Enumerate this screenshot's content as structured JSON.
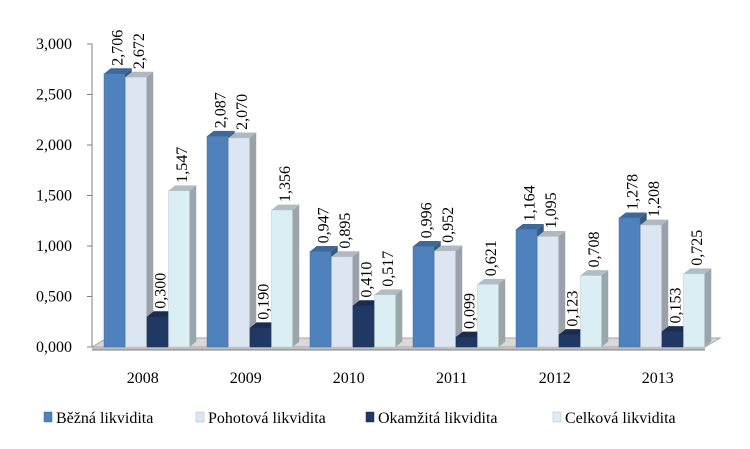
{
  "chart_data": {
    "type": "bar",
    "categories": [
      "2008",
      "2009",
      "2010",
      "2011",
      "2012",
      "2013"
    ],
    "series": [
      {
        "name": "Běžná likvidita",
        "color": "#4f81bd",
        "values": [
          2.706,
          2.087,
          0.947,
          0.996,
          1.164,
          1.278
        ],
        "labels": [
          "2,706",
          "2,087",
          "0,947",
          "0,996",
          "1,164",
          "1,278"
        ]
      },
      {
        "name": "Pohotová likvidita",
        "color": "#dce6f2",
        "values": [
          2.672,
          2.07,
          0.895,
          0.952,
          1.095,
          1.208
        ],
        "labels": [
          "2,672",
          "2,070",
          "0,895",
          "0,952",
          "1,095",
          "1,208"
        ]
      },
      {
        "name": "Okamžitá likvidita",
        "color": "#1f3864",
        "values": [
          0.3,
          0.19,
          0.41,
          0.099,
          0.123,
          0.153
        ],
        "labels": [
          "0,300",
          "0,190",
          "0,410",
          "0,099",
          "0,123",
          "0,153"
        ]
      },
      {
        "name": "Celková likvidita",
        "color": "#dbeef4",
        "values": [
          1.547,
          1.356,
          0.517,
          0.621,
          0.708,
          0.725
        ],
        "labels": [
          "1,547",
          "1,356",
          "0,517",
          "0,621",
          "0,708",
          "0,725"
        ]
      }
    ],
    "y_ticks": [
      "0,000",
      "0,500",
      "1,000",
      "1,500",
      "2,000",
      "2,500",
      "3,000"
    ],
    "ylim": [
      0,
      3
    ],
    "grid": false,
    "legend_position": "bottom",
    "style": "3d-column"
  }
}
